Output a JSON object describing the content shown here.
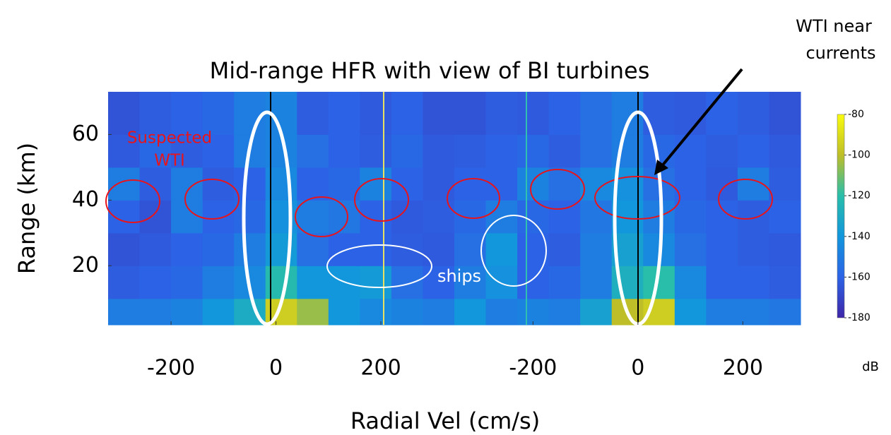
{
  "chart_data": {
    "type": "heatmap",
    "title": "Mid-range HFR with view of BI turbines",
    "ylabel": "Range (km)",
    "xlabel": "Radial Vel (cm/s)",
    "colorbar_label": "dB",
    "ylim": [
      2,
      73
    ],
    "yticks": [
      20,
      40,
      60
    ],
    "ybins": [
      2,
      10,
      20,
      30,
      40,
      50,
      60,
      73
    ],
    "clim": [
      -180,
      -80
    ],
    "cticks": [
      -80,
      -100,
      -120,
      -140,
      -160,
      -180
    ],
    "panels": [
      {
        "xlim": [
          -320,
          340
        ],
        "xticks": [
          -200,
          0,
          200
        ],
        "xbins": [
          -320,
          -260,
          -200,
          -140,
          -80,
          -20,
          40,
          100,
          160,
          220,
          280,
          340
        ],
        "z": [
          [
            -150,
            -150,
            -148,
            -140,
            -130,
            -95,
            -105,
            -140,
            -145,
            -148,
            -150
          ],
          [
            -162,
            -160,
            -158,
            -150,
            -145,
            -122,
            -140,
            -140,
            -138,
            -155,
            -160
          ],
          [
            -165,
            -163,
            -160,
            -158,
            -150,
            -138,
            -155,
            -160,
            -160,
            -162,
            -163
          ],
          [
            -160,
            -165,
            -150,
            -160,
            -158,
            -142,
            -150,
            -152,
            -160,
            -163,
            -162
          ],
          [
            -150,
            -162,
            -150,
            -162,
            -160,
            -145,
            -160,
            -158,
            -148,
            -160,
            -163
          ],
          [
            -163,
            -158,
            -162,
            -160,
            -150,
            -148,
            -155,
            -160,
            -162,
            -158,
            -163
          ],
          [
            -165,
            -162,
            -160,
            -158,
            -150,
            -148,
            -162,
            -160,
            -163,
            -160,
            -165
          ]
        ]
      },
      {
        "xlim": [
          -350,
          310
        ],
        "xticks": [
          -200,
          0,
          200
        ],
        "xbins": [
          -350,
          -290,
          -230,
          -170,
          -110,
          -50,
          10,
          70,
          130,
          190,
          250,
          310
        ],
        "z": [
          [
            -140,
            -150,
            -148,
            -150,
            -135,
            -100,
            -95,
            -140,
            -150,
            -150,
            -152
          ],
          [
            -150,
            -142,
            -160,
            -158,
            -150,
            -128,
            -120,
            -145,
            -160,
            -160,
            -162
          ],
          [
            -155,
            -140,
            -160,
            -162,
            -150,
            -135,
            -145,
            -155,
            -160,
            -162,
            -163
          ],
          [
            -158,
            -150,
            -158,
            -160,
            -152,
            -140,
            -150,
            -158,
            -160,
            -162,
            -160
          ],
          [
            -160,
            -160,
            -148,
            -155,
            -145,
            -142,
            -155,
            -160,
            -163,
            -150,
            -162
          ],
          [
            -162,
            -160,
            -158,
            -162,
            -155,
            -150,
            -158,
            -160,
            -162,
            -160,
            -163
          ],
          [
            -165,
            -162,
            -163,
            -160,
            -155,
            -150,
            -162,
            -163,
            -160,
            -162,
            -165
          ]
        ]
      }
    ],
    "annotations": {
      "suspected": [
        "Suspected",
        "WTI"
      ],
      "ships": "ships",
      "wti_currents": [
        "WTI near",
        "currents"
      ]
    }
  }
}
